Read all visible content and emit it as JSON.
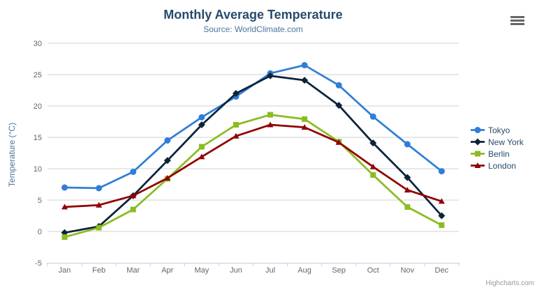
{
  "credits": "Highcharts.com",
  "menu": {
    "icon": "hamburger-menu"
  },
  "chart_data": {
    "type": "line",
    "title": "Monthly Average Temperature",
    "subtitle": "Source: WorldClimate.com",
    "categories": [
      "Jan",
      "Feb",
      "Mar",
      "Apr",
      "May",
      "Jun",
      "Jul",
      "Aug",
      "Sep",
      "Oct",
      "Nov",
      "Dec"
    ],
    "series": [
      {
        "name": "Tokyo",
        "color": "#2f7ed8",
        "marker": "circle",
        "values": [
          7.0,
          6.9,
          9.5,
          14.5,
          18.2,
          21.5,
          25.2,
          26.5,
          23.3,
          18.3,
          13.9,
          9.6
        ]
      },
      {
        "name": "New York",
        "color": "#0d233a",
        "marker": "diamond",
        "values": [
          -0.2,
          0.8,
          5.7,
          11.3,
          17.0,
          22.0,
          24.8,
          24.1,
          20.1,
          14.1,
          8.6,
          2.5
        ]
      },
      {
        "name": "Berlin",
        "color": "#8bbc21",
        "marker": "square",
        "values": [
          -0.9,
          0.6,
          3.5,
          8.4,
          13.5,
          17.0,
          18.6,
          17.9,
          14.3,
          9.0,
          3.9,
          1.0
        ]
      },
      {
        "name": "London",
        "color": "#910000",
        "marker": "triangle",
        "values": [
          3.9,
          4.2,
          5.7,
          8.5,
          11.9,
          15.2,
          17.0,
          16.6,
          14.2,
          10.3,
          6.6,
          4.8
        ]
      }
    ],
    "xlabel": "",
    "ylabel": "Temperature (°C)",
    "ylim": [
      -5,
      30
    ],
    "ytick_interval": 5,
    "grid": true,
    "legend_position": "right",
    "grid_color": "#d0d0d0",
    "axis_line_color": "#c0d0e0",
    "tick_label_color": "#666666",
    "axis_title_color": "#4d759e"
  }
}
